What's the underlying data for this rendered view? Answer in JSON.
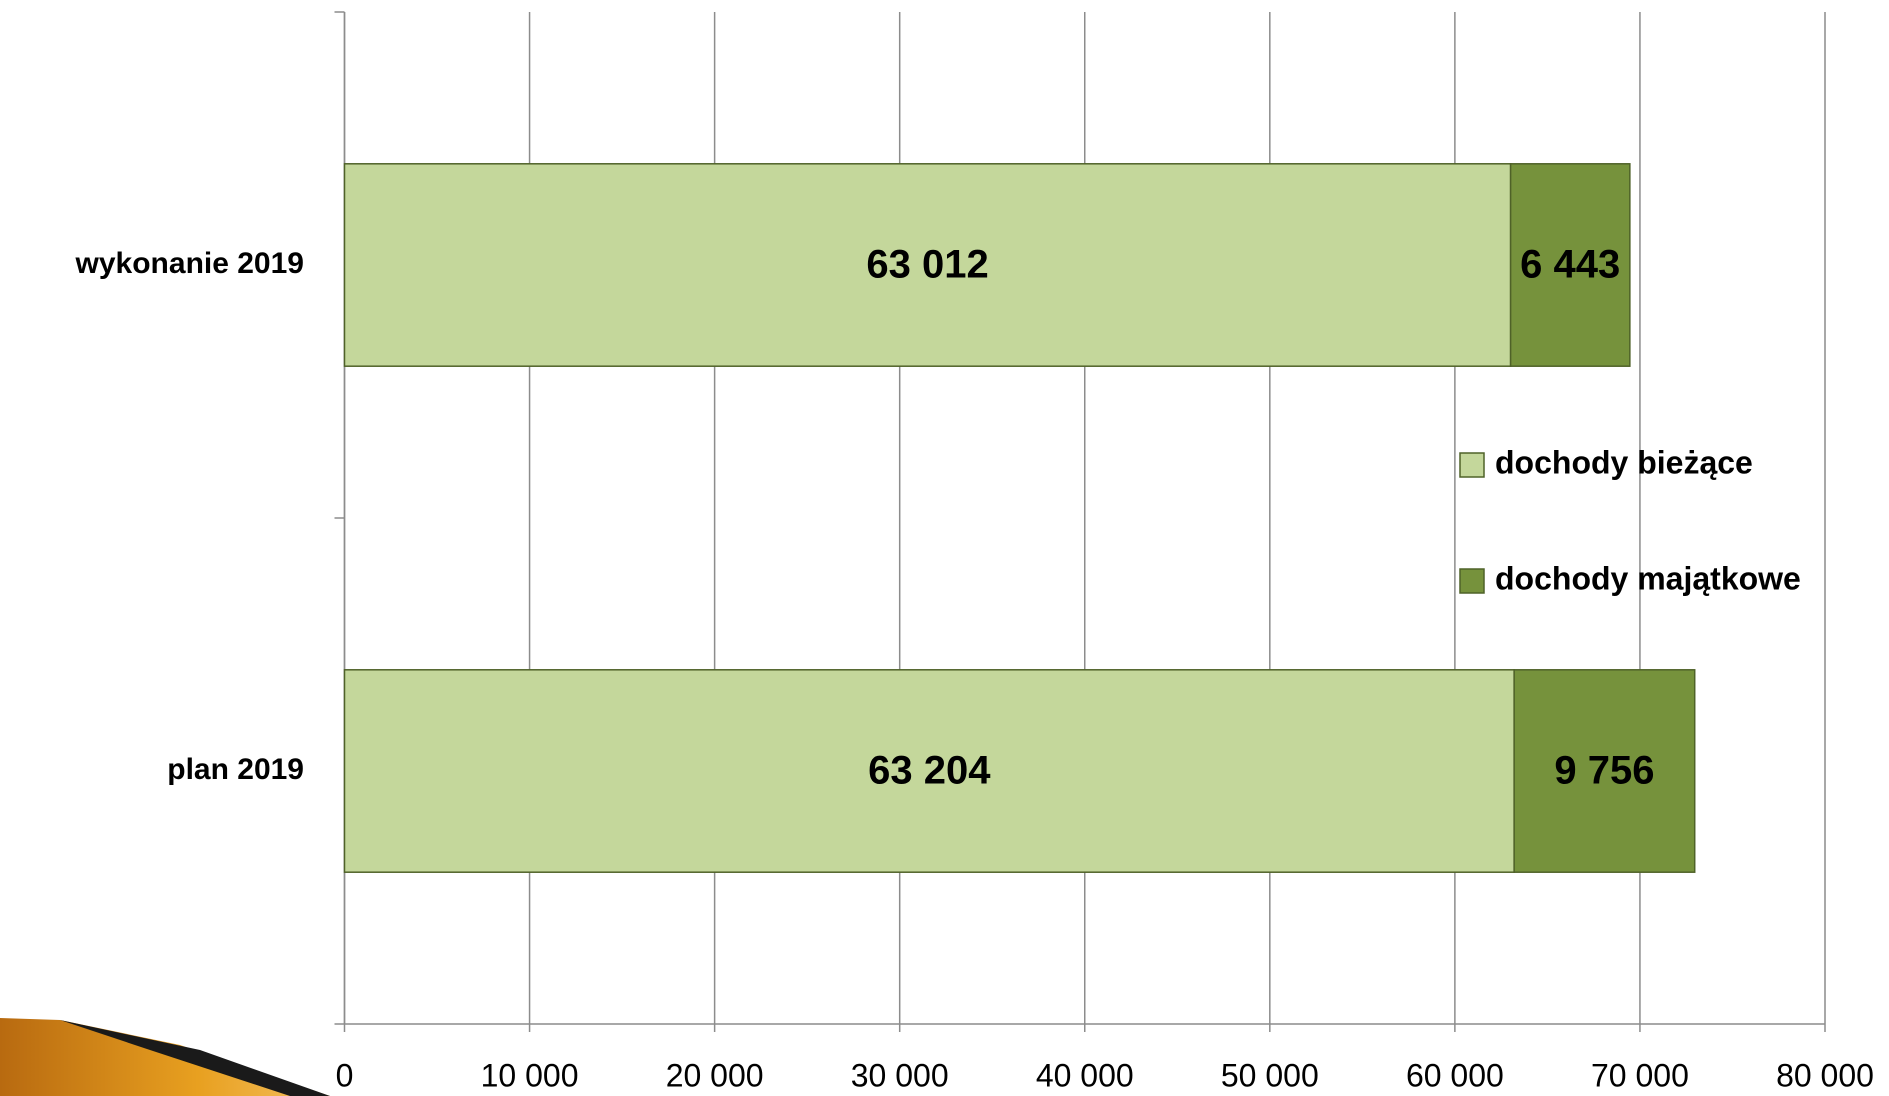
{
  "chart_data": {
    "type": "stacked_barh",
    "categories": [
      "plan 2019",
      "wykonanie 2019"
    ],
    "series": [
      {
        "name": "dochody bieżące",
        "color": "#c4d79b",
        "values": [
          63204,
          63012
        ],
        "value_labels": [
          "63 204",
          "63 012"
        ]
      },
      {
        "name": "dochody majątkowe",
        "color": "#76923c",
        "values": [
          9756,
          6443
        ],
        "value_labels": [
          "9 756",
          "6 443"
        ]
      }
    ],
    "xlim": [
      0,
      80000
    ],
    "xticks": [
      0,
      {
        "value": 10000,
        "label": "10 000"
      },
      {
        "value": 20000,
        "label": "20 000"
      },
      {
        "value": 30000,
        "label": "30 000"
      },
      {
        "value": 40000,
        "label": "40 000"
      },
      {
        "value": 50000,
        "label": "50 000"
      },
      {
        "value": 60000,
        "label": "60 000"
      },
      {
        "value": 70000,
        "label": "70 000"
      },
      {
        "value": 80000,
        "label": "80 000"
      }
    ],
    "grid": true,
    "legend": "right"
  }
}
